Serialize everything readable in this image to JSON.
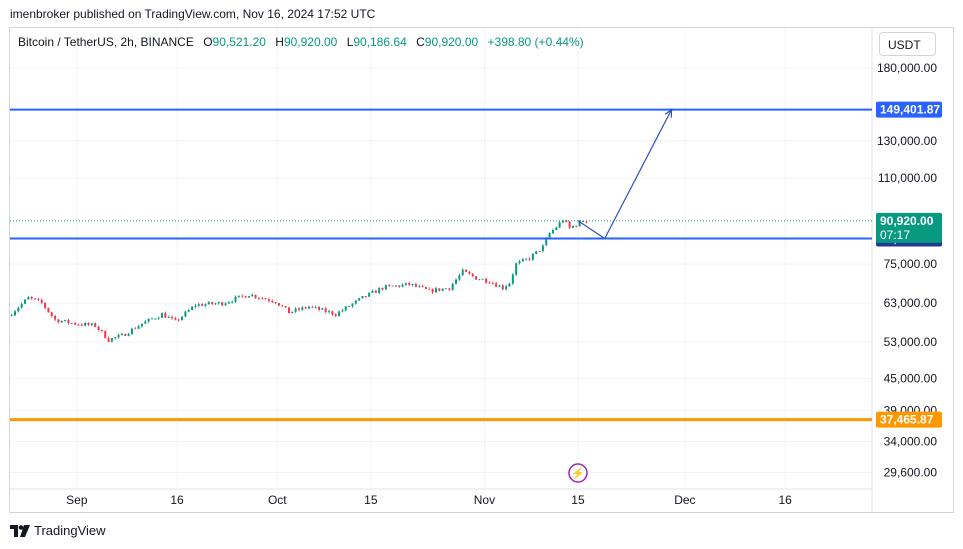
{
  "header": {
    "published": "imenbroker published on TradingView.com, Nov 16, 2024 17:52 UTC"
  },
  "legend": {
    "symbol": "Bitcoin / TetherUS, 2h, BINANCE",
    "o_label": "O",
    "o": "90,521.20",
    "h_label": "H",
    "h": "90,920.00",
    "l_label": "L",
    "l": "90,186.64",
    "c_label": "C",
    "c": "90,920.00",
    "change": "+398.80 (+0.44%)"
  },
  "currency": "USDT",
  "brand": {
    "name": "TradingView"
  },
  "colors": {
    "up": "#089981",
    "down": "#f23645",
    "level": "#2962ff",
    "support": "#ff9800",
    "arrow": "#2a52be",
    "badge_dark": "#1f3a93"
  },
  "chart_data": {
    "type": "candlestick",
    "symbol": "BTCUSDT",
    "interval": "2h",
    "y_scale": "log",
    "ylim": [
      27500,
      215000
    ],
    "y_ticks": [
      180000,
      130000,
      110000,
      75000,
      63000,
      53000,
      45000,
      39000,
      34000,
      29600
    ],
    "y_tick_labels": [
      "180,000.00",
      "130,000.00",
      "110,000.00",
      "75,000.00",
      "63,000.00",
      "53,000.00",
      "45,000.00",
      "39,000.00",
      "34,000.00",
      "29,600.00"
    ],
    "x_range": [
      "2024-08-22",
      "2024-12-29"
    ],
    "x_ticks": [
      {
        "date": "2024-09-01",
        "label": "Sep"
      },
      {
        "date": "2024-09-16",
        "label": "16"
      },
      {
        "date": "2024-10-01",
        "label": "Oct"
      },
      {
        "date": "2024-10-15",
        "label": "15"
      },
      {
        "date": "2024-11-01",
        "label": "Nov"
      },
      {
        "date": "2024-11-15",
        "label": "15"
      },
      {
        "date": "2024-12-01",
        "label": "Dec"
      },
      {
        "date": "2024-12-16",
        "label": "16"
      }
    ],
    "price_path": [
      [
        "2024-08-22",
        59500
      ],
      [
        "2024-08-25",
        64500
      ],
      [
        "2024-08-27",
        63000
      ],
      [
        "2024-08-29",
        58500
      ],
      [
        "2024-09-01",
        57500
      ],
      [
        "2024-09-04",
        57000
      ],
      [
        "2024-09-06",
        53500
      ],
      [
        "2024-09-08",
        54500
      ],
      [
        "2024-09-11",
        57500
      ],
      [
        "2024-09-14",
        60000
      ],
      [
        "2024-09-16",
        58000
      ],
      [
        "2024-09-19",
        62500
      ],
      [
        "2024-09-23",
        63000
      ],
      [
        "2024-09-27",
        65500
      ],
      [
        "2024-10-01",
        63500
      ],
      [
        "2024-10-03",
        60500
      ],
      [
        "2024-10-06",
        62000
      ],
      [
        "2024-10-10",
        60000
      ],
      [
        "2024-10-14",
        64500
      ],
      [
        "2024-10-17",
        67500
      ],
      [
        "2024-10-21",
        68500
      ],
      [
        "2024-10-24",
        66500
      ],
      [
        "2024-10-27",
        67500
      ],
      [
        "2024-10-29",
        72500
      ],
      [
        "2024-10-31",
        70500
      ],
      [
        "2024-11-02",
        69500
      ],
      [
        "2024-11-04",
        67500
      ],
      [
        "2024-11-05",
        69000
      ],
      [
        "2024-11-06",
        75000
      ],
      [
        "2024-11-08",
        77000
      ],
      [
        "2024-11-10",
        81000
      ],
      [
        "2024-11-11",
        86000
      ],
      [
        "2024-11-12",
        88500
      ],
      [
        "2024-11-13",
        91500
      ],
      [
        "2024-11-14",
        88000
      ],
      [
        "2024-11-15",
        89500
      ],
      [
        "2024-11-16",
        90920
      ]
    ],
    "o": 90521.2,
    "h": 90920.0,
    "l": 90186.64,
    "c": 90920.0,
    "change": 398.8,
    "change_pct": 0.44,
    "levels": [
      {
        "price": 149401.87,
        "label": "149,401.87",
        "color": "#2962ff",
        "style": "solid"
      },
      {
        "price": 84054.36,
        "label": "84,054.36",
        "color": "#2962ff",
        "style": "solid"
      },
      {
        "price": 37465.87,
        "label": "37,465.87",
        "color": "#ff9800",
        "style": "solid"
      }
    ],
    "last_price": {
      "price": 90920.0,
      "label": "90,920.00",
      "countdown": "07:17"
    },
    "projection": [
      [
        "2024-11-15",
        91000
      ],
      [
        "2024-11-19",
        84054.36
      ],
      [
        "2024-11-29",
        149401.87
      ]
    ],
    "event_marker": {
      "date": "2024-11-15",
      "symbol": "⚡"
    },
    "grid": true
  }
}
